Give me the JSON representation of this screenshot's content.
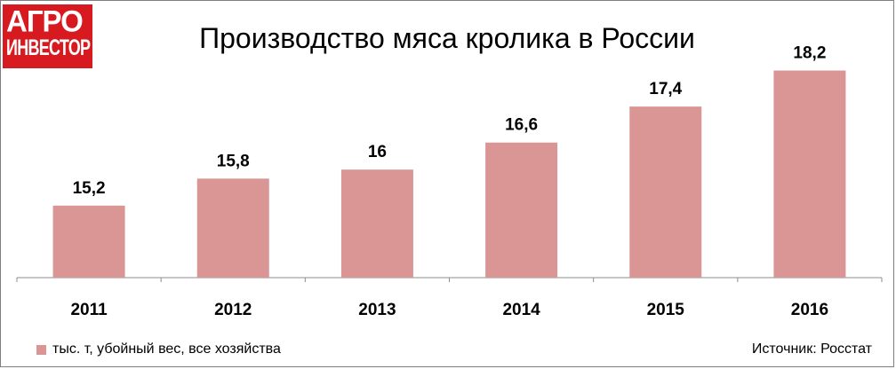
{
  "logo": {
    "line1": "АГРО",
    "line2": "ИНВЕСТОР"
  },
  "source": "Источник: Росстат",
  "chart_data": {
    "type": "bar",
    "title": "Производство мяса кролика в России",
    "categories": [
      "2011",
      "2012",
      "2013",
      "2014",
      "2015",
      "2016"
    ],
    "series": [
      {
        "name": "тыс. т, убойный вес, все хозяйства",
        "values": [
          15.2,
          15.8,
          16,
          16.6,
          17.4,
          18.2
        ],
        "labels": [
          "15,2",
          "15,8",
          "16",
          "16,6",
          "17,4",
          "18,2"
        ]
      }
    ],
    "ylim": [
      13.6,
      18.9
    ],
    "grid": false,
    "legend_position": "bottom-left",
    "colors": {
      "bar": "#d99694",
      "axis": "#8c8c8c",
      "logo_bg": "#d71920"
    }
  }
}
